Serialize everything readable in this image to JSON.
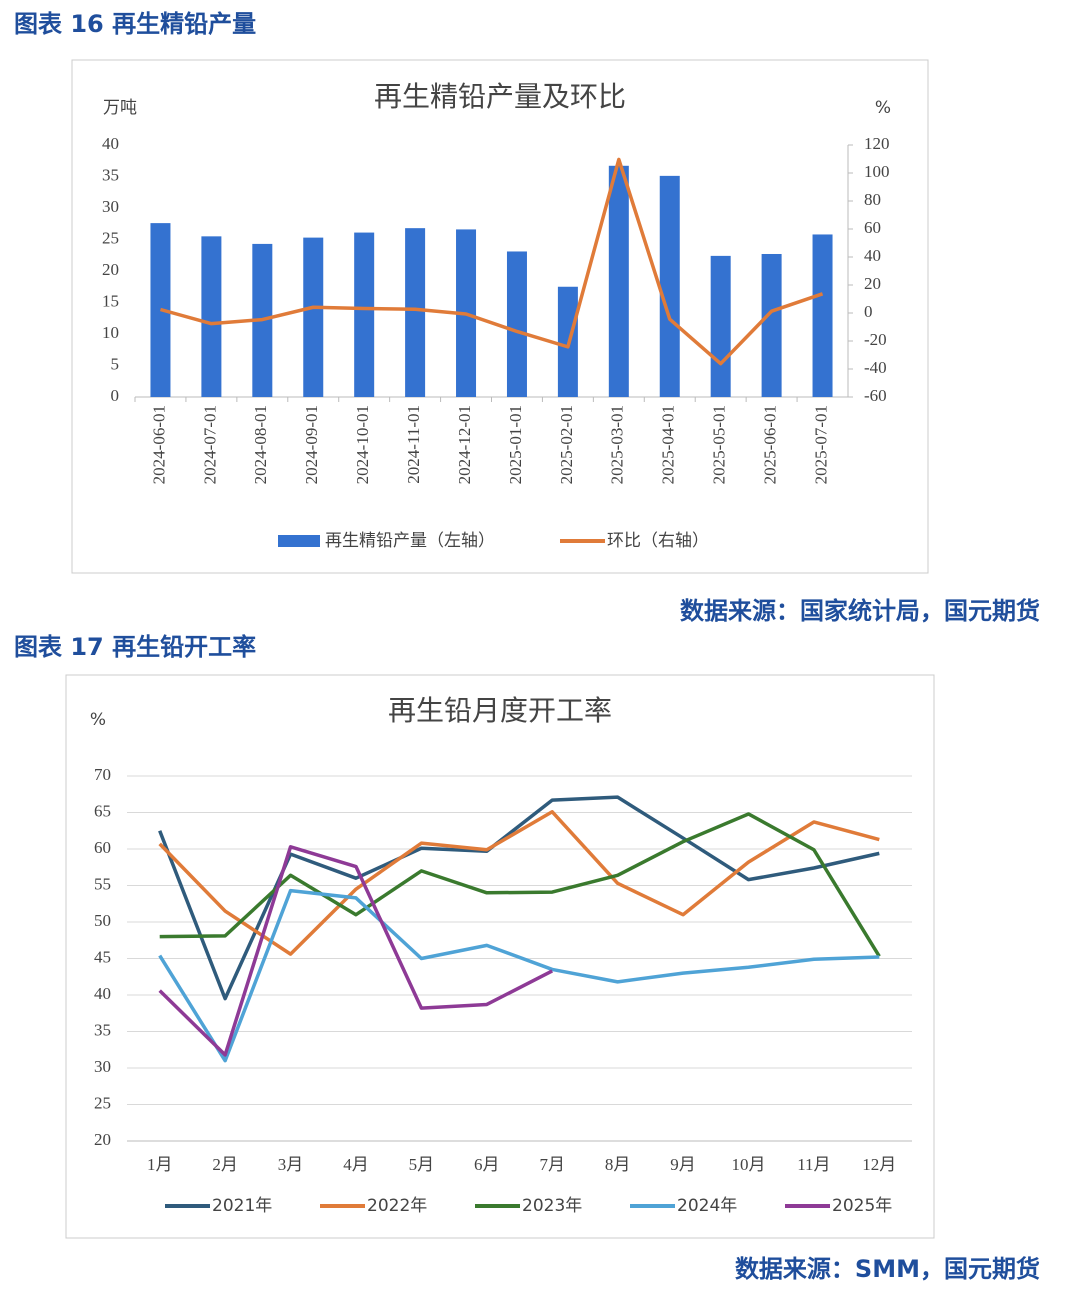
{
  "figures": [
    {
      "caption": "图表 16 再生精铅产量",
      "source": "数据来源：国家统计局，国元期货"
    },
    {
      "caption": "图表 17 再生铅开工率",
      "source": "数据来源：SMM，国元期货"
    }
  ],
  "chart_data": [
    {
      "type": "bar",
      "title": "再生精铅产量及环比",
      "ylabel": "万吨",
      "y2label": "%",
      "categories": [
        "2024-06-01",
        "2024-07-01",
        "2024-08-01",
        "2024-09-01",
        "2024-10-01",
        "2024-11-01",
        "2024-12-01",
        "2025-01-01",
        "2025-02-01",
        "2025-03-01",
        "2025-04-01",
        "2025-05-01",
        "2025-06-01",
        "2025-07-01"
      ],
      "series": [
        {
          "name": "再生精铅产量（左轴）",
          "type": "bar",
          "color": "#3472d0",
          "values": [
            27.6,
            25.5,
            24.3,
            25.3,
            26.1,
            26.8,
            26.6,
            23.1,
            17.5,
            36.7,
            35.1,
            22.4,
            22.7,
            25.8
          ]
        },
        {
          "name": "环比（右轴）",
          "type": "line",
          "axis": "y2",
          "color": "#e07b39",
          "values": [
            2.5,
            -7.6,
            -4.7,
            4.1,
            3.2,
            2.7,
            -0.7,
            -13.2,
            -24.2,
            109.7,
            -4.4,
            -36.2,
            1.3,
            13.7
          ]
        }
      ],
      "ylim": [
        0,
        40
      ],
      "yticks": [
        0,
        5,
        10,
        15,
        20,
        25,
        30,
        35,
        40
      ],
      "y2lim": [
        -60,
        120
      ],
      "y2ticks": [
        -60,
        -40,
        -20,
        0,
        20,
        40,
        60,
        80,
        100,
        120
      ],
      "grid": false,
      "legend": "bottom"
    },
    {
      "type": "line",
      "title": "再生铅月度开工率",
      "ylabel": "%",
      "categories": [
        "1月",
        "2月",
        "3月",
        "4月",
        "5月",
        "6月",
        "7月",
        "8月",
        "9月",
        "10月",
        "11月",
        "12月"
      ],
      "series": [
        {
          "name": "2021年",
          "color": "#2f5b7c",
          "values": [
            62.5,
            39.5,
            59.3,
            56,
            60.1,
            59.7,
            66.7,
            67.1,
            61.5,
            55.8,
            57.4,
            59.4
          ]
        },
        {
          "name": "2022年",
          "color": "#e07b39",
          "values": [
            60.7,
            51.5,
            45.6,
            54.5,
            60.8,
            59.9,
            65.1,
            55.3,
            51,
            58.2,
            63.7,
            61.3
          ]
        },
        {
          "name": "2023年",
          "color": "#3a7a2e",
          "values": [
            48,
            48.1,
            56.4,
            51,
            57,
            54,
            54.1,
            56.4,
            61,
            64.8,
            59.9,
            45.3
          ]
        },
        {
          "name": "2024年",
          "color": "#4fa3d6",
          "values": [
            45.4,
            31,
            54.3,
            53.3,
            45,
            46.8,
            43.5,
            41.8,
            43,
            43.8,
            44.9,
            45.2
          ]
        },
        {
          "name": "2025年",
          "color": "#8e3a96",
          "values": [
            40.6,
            31.8,
            60.3,
            57.6,
            38.2,
            38.7,
            43.3,
            null,
            null,
            null,
            null,
            null
          ]
        }
      ],
      "ylim": [
        20,
        70
      ],
      "yticks": [
        20,
        25,
        30,
        35,
        40,
        45,
        50,
        55,
        60,
        65,
        70
      ],
      "grid": true,
      "legend": "bottom"
    }
  ]
}
